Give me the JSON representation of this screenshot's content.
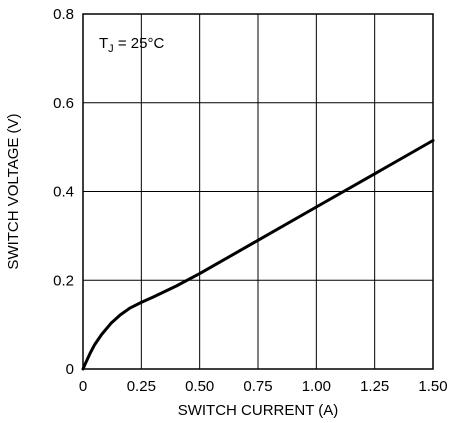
{
  "chart_data": {
    "type": "line",
    "title": "",
    "xlabel": "SWITCH CURRENT (A)",
    "ylabel": "SWITCH VOLTAGE (V)",
    "xlim": [
      0,
      1.5
    ],
    "ylim": [
      0,
      0.8
    ],
    "x_ticks": [
      "0",
      "0.25",
      "0.50",
      "0.75",
      "1.00",
      "1.25",
      "1.50"
    ],
    "y_ticks": [
      "0",
      "0.2",
      "0.4",
      "0.6",
      "0.8"
    ],
    "grid": true,
    "annotation": {
      "prefix": "T",
      "subscript": "J",
      "suffix": " = 25°C"
    },
    "series": [
      {
        "x": [
          0,
          0.01,
          0.03,
          0.05,
          0.08,
          0.12,
          0.16,
          0.2,
          0.25,
          0.3,
          0.4,
          0.5,
          0.75,
          1.0,
          1.25,
          1.5
        ],
        "y": [
          0,
          0.012,
          0.035,
          0.055,
          0.078,
          0.103,
          0.122,
          0.137,
          0.15,
          0.162,
          0.187,
          0.215,
          0.29,
          0.365,
          0.44,
          0.515
        ]
      }
    ]
  }
}
